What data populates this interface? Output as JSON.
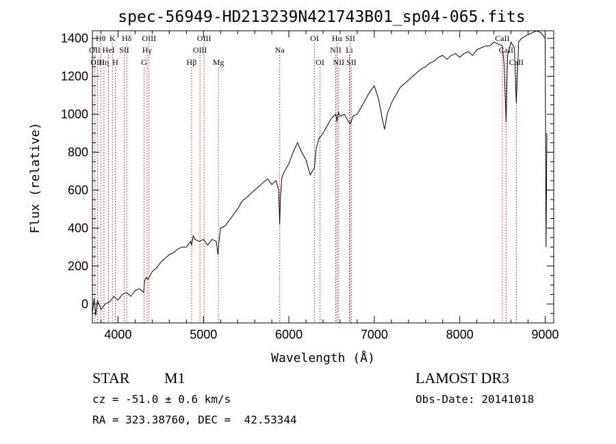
{
  "chart_data": {
    "type": "line",
    "title": "spec-56949-HD213239N421743B01_sp04-065.fits",
    "xlabel": "Wavelength (Å)",
    "ylabel": "Flux (relative)",
    "xlim": [
      3700,
      9100
    ],
    "ylim": [
      -100,
      1440
    ],
    "xticks": [
      4000,
      5000,
      6000,
      7000,
      8000,
      9000
    ],
    "yticks": [
      0,
      200,
      400,
      600,
      800,
      1000,
      1200,
      1400
    ],
    "series": [
      {
        "name": "flux",
        "x": [
          3700,
          3720,
          3740,
          3760,
          3800,
          3850,
          3900,
          3950,
          4000,
          4050,
          4100,
          4150,
          4200,
          4250,
          4300,
          4310,
          4330,
          4350,
          4400,
          4450,
          4500,
          4550,
          4600,
          4650,
          4700,
          4750,
          4800,
          4850,
          4861,
          4880,
          4900,
          4950,
          5000,
          5050,
          5100,
          5150,
          5170,
          5180,
          5200,
          5250,
          5300,
          5350,
          5400,
          5450,
          5500,
          5550,
          5600,
          5650,
          5700,
          5750,
          5800,
          5850,
          5880,
          5893,
          5900,
          5920,
          5950,
          6000,
          6050,
          6100,
          6150,
          6200,
          6250,
          6300,
          6320,
          6350,
          6400,
          6450,
          6500,
          6550,
          6563,
          6580,
          6600,
          6650,
          6700,
          6720,
          6750,
          6800,
          6850,
          6900,
          6950,
          7000,
          7050,
          7100,
          7120,
          7150,
          7200,
          7250,
          7300,
          7350,
          7400,
          7450,
          7500,
          7550,
          7600,
          7650,
          7700,
          7750,
          7800,
          7850,
          7900,
          7950,
          8000,
          8050,
          8100,
          8150,
          8200,
          8250,
          8300,
          8350,
          8400,
          8450,
          8498,
          8520,
          8542,
          8560,
          8600,
          8640,
          8662,
          8690,
          8720,
          8760,
          8800,
          8850,
          8900,
          8950,
          9000,
          9010,
          9020
        ],
        "y": [
          -50,
          30,
          -60,
          20,
          -30,
          0,
          10,
          40,
          20,
          50,
          60,
          40,
          70,
          80,
          60,
          120,
          140,
          130,
          170,
          190,
          220,
          240,
          260,
          270,
          290,
          300,
          300,
          330,
          310,
          360,
          340,
          330,
          340,
          310,
          340,
          330,
          260,
          320,
          400,
          410,
          440,
          470,
          500,
          540,
          560,
          580,
          600,
          620,
          640,
          660,
          630,
          650,
          600,
          420,
          560,
          670,
          700,
          740,
          800,
          850,
          800,
          760,
          680,
          720,
          820,
          870,
          900,
          940,
          980,
          1000,
          960,
          1010,
          990,
          1000,
          960,
          950,
          990,
          1000,
          1040,
          1080,
          1120,
          1150,
          1080,
          960,
          920,
          1000,
          1060,
          1100,
          1140,
          1160,
          1180,
          1200,
          1220,
          1240,
          1250,
          1270,
          1280,
          1300,
          1310,
          1290,
          1310,
          1320,
          1300,
          1320,
          1330,
          1310,
          1340,
          1350,
          1360,
          1360,
          1380,
          1370,
          1360,
          1260,
          960,
          1310,
          1380,
          1350,
          1060,
          1380,
          1400,
          1410,
          1420,
          1430,
          1440,
          1430,
          1400,
          300,
          900
        ]
      }
    ],
    "lines": [
      {
        "label": "Hθ",
        "x": 3798,
        "row": 0
      },
      {
        "label": "OII",
        "x": 3727,
        "row": 1
      },
      {
        "label": "OIII",
        "x": 3760,
        "row": 2
      },
      {
        "label": "Hη",
        "x": 3835,
        "row": 2
      },
      {
        "label": "HeI",
        "x": 3889,
        "row": 1
      },
      {
        "label": "K",
        "x": 3934,
        "row": 0
      },
      {
        "label": "H",
        "x": 3968,
        "row": 2
      },
      {
        "label": "SII",
        "x": 4072,
        "row": 1
      },
      {
        "label": "Hδ",
        "x": 4102,
        "row": 0
      },
      {
        "label": "G",
        "x": 4305,
        "row": 2
      },
      {
        "label": "Hγ",
        "x": 4340,
        "row": 1
      },
      {
        "label": "OIII",
        "x": 4363,
        "row": 0
      },
      {
        "label": "Hβ",
        "x": 4861,
        "row": 2
      },
      {
        "label": "OIII",
        "x": 4959,
        "row": 1
      },
      {
        "label": "OIII",
        "x": 5007,
        "row": 0
      },
      {
        "label": "Mg",
        "x": 5175,
        "row": 2
      },
      {
        "label": "Na",
        "x": 5893,
        "row": 1
      },
      {
        "label": "OI",
        "x": 6300,
        "row": 0
      },
      {
        "label": "OI",
        "x": 6364,
        "row": 2
      },
      {
        "label": "NII",
        "x": 6548,
        "row": 1
      },
      {
        "label": "Hα",
        "x": 6563,
        "row": 0
      },
      {
        "label": "NII",
        "x": 6583,
        "row": 2
      },
      {
        "label": "Li",
        "x": 6708,
        "row": 1
      },
      {
        "label": "SII",
        "x": 6717,
        "row": 0
      },
      {
        "label": "SII",
        "x": 6731,
        "row": 2
      },
      {
        "label": "CaII",
        "x": 8498,
        "row": 0
      },
      {
        "label": "CaII",
        "x": 8542,
        "row": 1
      },
      {
        "label": "CaII",
        "x": 8662,
        "row": 2
      }
    ]
  },
  "info": {
    "obj_class": "STAR",
    "subclass": "M1",
    "survey": "LAMOST DR3",
    "cz": "cz = -51.0 ± 0.6 km/s",
    "obs_date": "Obs-Date: 20141018",
    "coords": "RA = 323.38760, DEC =  42.53344"
  },
  "colors": {
    "axis": "#000000",
    "line_marker": "#b22222"
  }
}
